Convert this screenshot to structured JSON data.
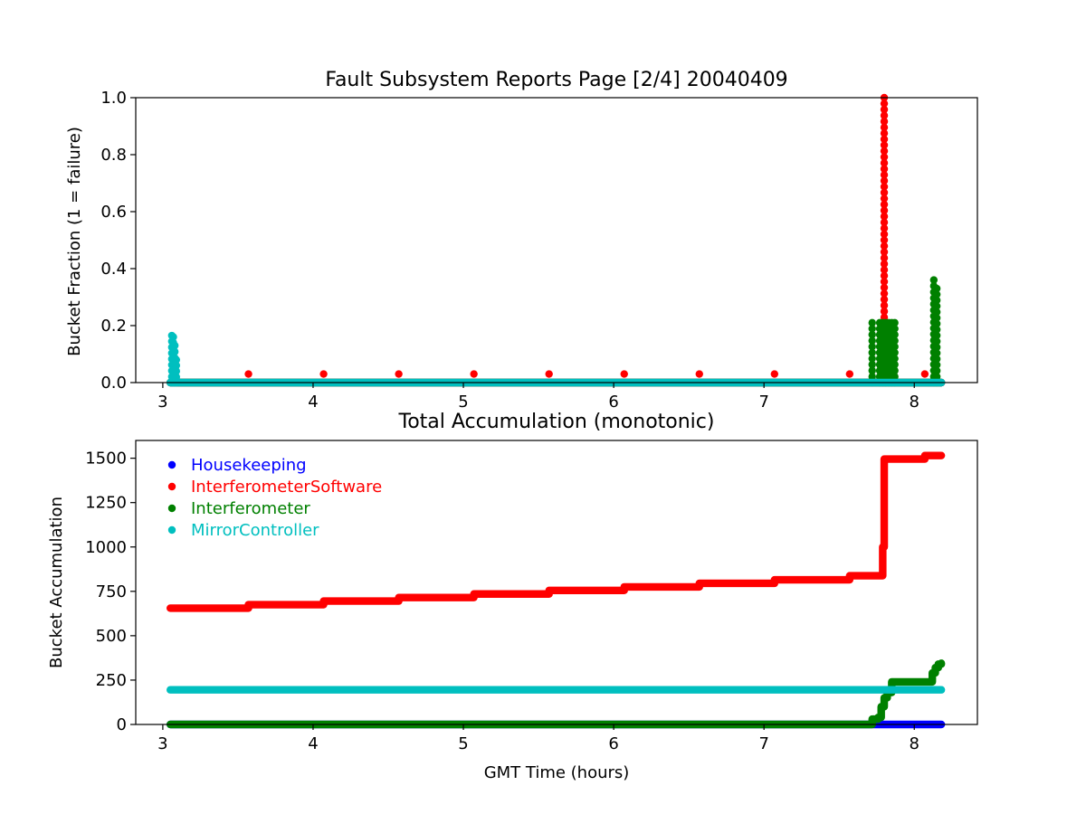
{
  "chart_data": [
    {
      "type": "scatter",
      "title": "Fault Subsystem Reports Page [2/4] 20040409",
      "xlabel": "",
      "ylabel": "Bucket Fraction (1 = failure)",
      "xlim": [
        2.82,
        8.42
      ],
      "ylim": [
        0,
        1.0
      ],
      "xticks": [
        "3",
        "4",
        "5",
        "6",
        "7",
        "8"
      ],
      "yticks": [
        "0.0",
        "0.2",
        "0.4",
        "0.6",
        "0.8",
        "1.0"
      ],
      "grid": false,
      "series": [
        {
          "name": "Housekeeping",
          "color": "#0000ff",
          "segments": [
            [
              3.05,
              0.0,
              8.18,
              0.0
            ]
          ],
          "points": []
        },
        {
          "name": "InterferometerSoftware",
          "color": "#ff0000",
          "segments": [
            [
              3.05,
              0.0,
              8.18,
              0.0
            ]
          ],
          "points": [
            [
              3.57,
              0.03
            ],
            [
              4.07,
              0.03
            ],
            [
              4.57,
              0.03
            ],
            [
              5.07,
              0.03
            ],
            [
              5.57,
              0.03
            ],
            [
              6.07,
              0.03
            ],
            [
              6.57,
              0.03
            ],
            [
              7.07,
              0.03
            ],
            [
              7.57,
              0.03
            ],
            [
              8.07,
              0.03
            ]
          ],
          "columns": [
            [
              7.8,
              1.0
            ]
          ]
        },
        {
          "name": "Interferometer",
          "color": "#008000",
          "segments": [
            [
              3.05,
              0.0,
              8.18,
              0.0
            ]
          ],
          "columns": [
            [
              7.72,
              0.21
            ],
            [
              7.77,
              0.21
            ],
            [
              7.79,
              0.21
            ],
            [
              7.81,
              0.21
            ],
            [
              7.83,
              0.21
            ],
            [
              7.85,
              0.21
            ],
            [
              7.87,
              0.21
            ],
            [
              8.13,
              0.36
            ],
            [
              8.15,
              0.33
            ]
          ]
        },
        {
          "name": "MirrorController",
          "color": "#00bfbf",
          "segments": [
            [
              3.05,
              0.0,
              8.18,
              0.0
            ]
          ],
          "columns": [
            [
              3.06,
              0.165
            ],
            [
              3.07,
              0.16
            ],
            [
              3.08,
              0.13
            ],
            [
              3.09,
              0.08
            ]
          ]
        }
      ]
    },
    {
      "type": "scatter",
      "title": "Total Accumulation (monotonic)",
      "xlabel": "GMT Time (hours)",
      "ylabel": "Bucket Accumulation",
      "xlim": [
        2.82,
        8.42
      ],
      "ylim": [
        0,
        1600
      ],
      "xticks": [
        "3",
        "4",
        "5",
        "6",
        "7",
        "8"
      ],
      "yticks": [
        "0",
        "250",
        "500",
        "750",
        "1000",
        "1250",
        "1500"
      ],
      "grid": false,
      "legend": {
        "placement": "top-left",
        "entries": [
          {
            "name": "Housekeeping",
            "color": "#0000ff"
          },
          {
            "name": "InterferometerSoftware",
            "color": "#ff0000"
          },
          {
            "name": "Interferometer",
            "color": "#008000"
          },
          {
            "name": "MirrorController",
            "color": "#00bfbf"
          }
        ]
      },
      "series": [
        {
          "name": "Housekeeping",
          "color": "#0000ff",
          "steps": [
            [
              3.05,
              0
            ],
            [
              7.85,
              0
            ],
            [
              8.18,
              0
            ]
          ]
        },
        {
          "name": "InterferometerSoftware",
          "color": "#ff0000",
          "steps": [
            [
              3.05,
              655
            ],
            [
              3.57,
              675
            ],
            [
              4.07,
              695
            ],
            [
              4.57,
              715
            ],
            [
              5.07,
              735
            ],
            [
              5.57,
              755
            ],
            [
              6.07,
              775
            ],
            [
              6.57,
              795
            ],
            [
              7.07,
              815
            ],
            [
              7.57,
              838
            ],
            [
              7.79,
              1000
            ],
            [
              7.8,
              1495
            ],
            [
              8.07,
              1515
            ],
            [
              8.18,
              1515
            ]
          ]
        },
        {
          "name": "Interferometer",
          "color": "#008000",
          "steps": [
            [
              3.05,
              0
            ],
            [
              7.72,
              30
            ],
            [
              7.76,
              40
            ],
            [
              7.78,
              100
            ],
            [
              7.8,
              150
            ],
            [
              7.82,
              180
            ],
            [
              7.85,
              240
            ],
            [
              8.12,
              290
            ],
            [
              8.14,
              320
            ],
            [
              8.16,
              340
            ],
            [
              8.18,
              345
            ]
          ]
        },
        {
          "name": "MirrorController",
          "color": "#00bfbf",
          "steps": [
            [
              3.05,
              195
            ],
            [
              8.18,
              195
            ]
          ]
        }
      ]
    }
  ]
}
